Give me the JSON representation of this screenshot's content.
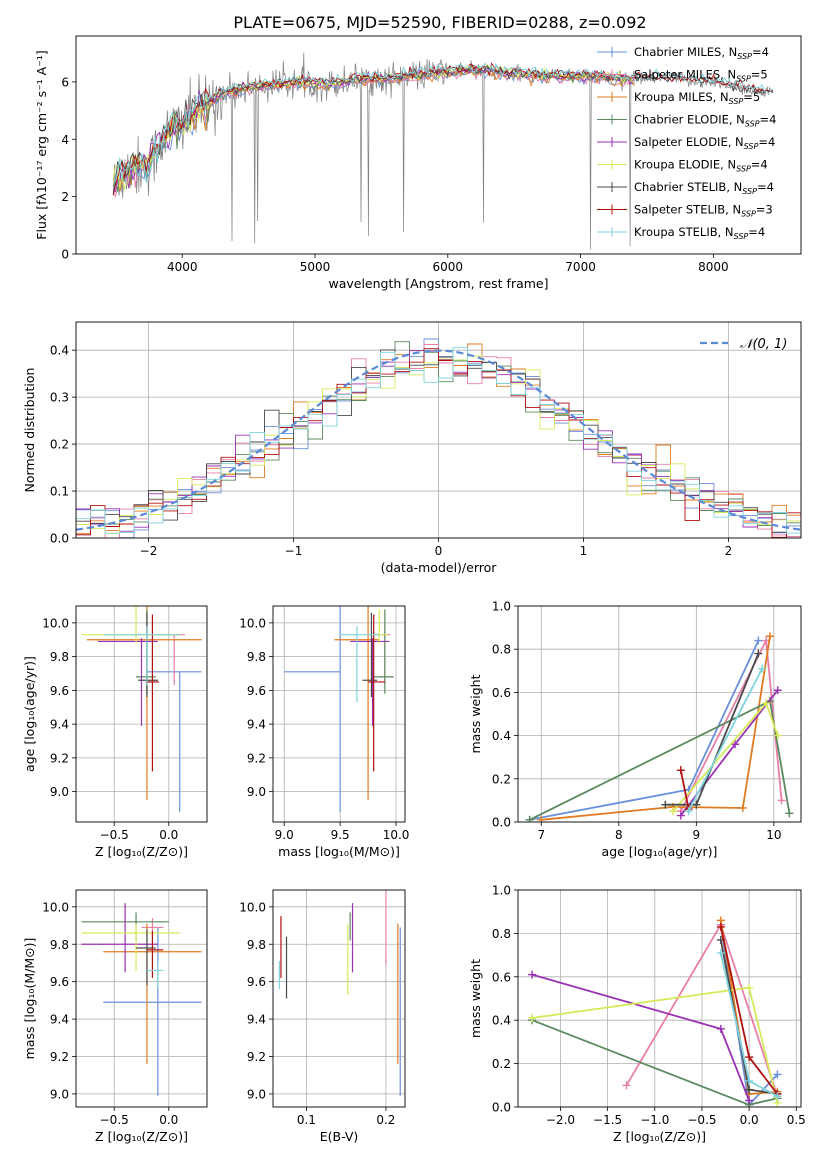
{
  "figure": {
    "title": "PLATE=0675, MJD=52590, FIBERID=0288, z=0.092"
  },
  "colors": {
    "Chabrier MILES": "#6a8fdb",
    "Salpeter MILES": "#e97fa8",
    "Kroupa MILES": "#e07b22",
    "Chabrier ELODIE": "#5b8a5e",
    "Salpeter ELODIE": "#9b32b4",
    "Kroupa ELODIE": "#d6ea5a",
    "Chabrier STELIB": "#4a4a4a",
    "Salpeter STELIB": "#b01010",
    "Kroupa STELIB": "#7fd3dc",
    "data": "#808080",
    "gauss": "#5b8ad6"
  },
  "chart_data": [
    {
      "id": "spectrum",
      "type": "line",
      "xlabel": "wavelength [Angstrom, rest frame]",
      "ylabel": "Flux [fλ10⁻¹⁷ erg cm⁻² s⁻¹ A⁻¹]",
      "xlim": [
        3200,
        8660
      ],
      "ylim": [
        0,
        7.6
      ],
      "xticks": [
        4000,
        5000,
        6000,
        7000,
        8000
      ],
      "yticks": [
        0,
        2,
        4,
        6
      ],
      "legend_position": "right",
      "legend": [
        {
          "label": "Chabrier MILES, N",
          "sub": "SSP",
          "suffix": "=4"
        },
        {
          "label": "Salpeter MILES, N",
          "sub": "SSP",
          "suffix": "=5"
        },
        {
          "label": "Kroupa MILES, N",
          "sub": "SSP",
          "suffix": "=5"
        },
        {
          "label": "Chabrier ELODIE, N",
          "sub": "SSP",
          "suffix": "=4"
        },
        {
          "label": "Salpeter ELODIE, N",
          "sub": "SSP",
          "suffix": "=4"
        },
        {
          "label": "Kroupa ELODIE, N",
          "sub": "SSP",
          "suffix": "=4"
        },
        {
          "label": "Chabrier STELIB, N",
          "sub": "SSP",
          "suffix": "=4"
        },
        {
          "label": "Salpeter STELIB, N",
          "sub": "SSP",
          "suffix": "=3"
        },
        {
          "label": "Kroupa STELIB, N",
          "sub": "SSP",
          "suffix": "=4"
        }
      ],
      "continuum": {
        "x": [
          3480,
          3550,
          3650,
          3750,
          3850,
          3950,
          4050,
          4150,
          4300,
          4500,
          4700,
          4900,
          5100,
          5300,
          5500,
          5700,
          5900,
          6100,
          6300,
          6500,
          6700,
          6900,
          7100,
          7300,
          7500,
          7700,
          7900,
          8100,
          8300,
          8450
        ],
        "y": [
          2.3,
          2.8,
          3.0,
          3.1,
          4.0,
          4.5,
          4.7,
          5.1,
          5.6,
          5.8,
          5.9,
          6.0,
          5.9,
          6.1,
          6.1,
          6.2,
          6.3,
          6.4,
          6.4,
          6.3,
          6.2,
          6.2,
          6.2,
          6.1,
          6.1,
          6.1,
          6.0,
          5.9,
          5.7,
          5.6
        ]
      }
    },
    {
      "id": "residuals",
      "type": "histogram",
      "xlabel": "(data-model)/error",
      "ylabel": "Normed distribution",
      "xlim": [
        -2.5,
        2.5
      ],
      "ylim": [
        0,
        0.46
      ],
      "xticks": [
        -2,
        -1,
        0,
        1,
        2
      ],
      "yticks": [
        0.0,
        0.1,
        0.2,
        0.3,
        0.4
      ],
      "grid": true,
      "legend_label": "𝒩(0, 1)",
      "legend_position": "top-right",
      "bins": 50
    },
    {
      "id": "age_vs_Z",
      "type": "errorbar",
      "xlabel": "Z [log₁₀(Z/Z⊙)]",
      "ylabel": "age  [log₁₀(age/yr)]",
      "xlim": [
        -0.85,
        0.35
      ],
      "ylim": [
        8.82,
        10.1
      ],
      "xticks": [
        -0.5,
        0.0
      ],
      "yticks": [
        9.0,
        9.2,
        9.4,
        9.6,
        9.8,
        10.0
      ],
      "grid": true,
      "points": [
        {
          "model": "Chabrier MILES",
          "x": 0.1,
          "xerr": [
            0.3,
            0.2
          ],
          "y": 9.71,
          "yerr": [
            0.83,
            0.0
          ]
        },
        {
          "model": "Salpeter MILES",
          "x": 0.05,
          "xerr": [
            0.2,
            0.1
          ],
          "y": 9.93,
          "yerr": [
            0.3,
            0.0
          ]
        },
        {
          "model": "Kroupa MILES",
          "x": -0.2,
          "xerr": [
            0.55,
            0.5
          ],
          "y": 9.9,
          "yerr": [
            0.95,
            0.2
          ]
        },
        {
          "model": "Chabrier ELODIE",
          "x": -0.2,
          "xerr": [
            0.1,
            0.08
          ],
          "y": 9.68,
          "yerr": [
            0.1,
            0.4
          ]
        },
        {
          "model": "Salpeter ELODIE",
          "x": -0.25,
          "xerr": [
            0.4,
            0.15
          ],
          "y": 9.89,
          "yerr": [
            0.5,
            0.02
          ]
        },
        {
          "model": "Kroupa ELODIE",
          "x": -0.3,
          "xerr": [
            0.5,
            0.38
          ],
          "y": 9.93,
          "yerr": [
            0.05,
            0.2
          ]
        },
        {
          "model": "Chabrier STELIB",
          "x": -0.2,
          "xerr": [
            0.08,
            0.1
          ],
          "y": 9.66,
          "yerr": [
            0.1,
            0.4
          ]
        },
        {
          "model": "Salpeter STELIB",
          "x": -0.15,
          "xerr": [
            0.06,
            0.06
          ],
          "y": 9.65,
          "yerr": [
            0.53,
            0.4
          ]
        },
        {
          "model": "Kroupa STELIB",
          "x": -0.2,
          "xerr": [
            0.4,
            0.3
          ],
          "y": 9.93,
          "yerr": [
            0.3,
            0.05
          ]
        }
      ]
    },
    {
      "id": "age_vs_mass",
      "type": "errorbar",
      "xlabel": "mass [log₁₀(M/M⊙)]",
      "ylabel": "",
      "xlim": [
        8.9,
        10.08
      ],
      "ylim": [
        8.82,
        10.1
      ],
      "xticks": [
        9.0,
        9.5,
        10.0
      ],
      "yticks": [
        9.0,
        9.2,
        9.4,
        9.6,
        9.8,
        10.0
      ],
      "grid": true,
      "points": [
        {
          "model": "Chabrier MILES",
          "x": 9.5,
          "xerr": [
            0.5,
            0.0
          ],
          "y": 9.71,
          "yerr": [
            0.83,
            0.45
          ]
        },
        {
          "model": "Salpeter MILES",
          "x": 9.9,
          "xerr": [
            0.1,
            0.05
          ],
          "y": 9.93,
          "yerr": [
            0.3,
            0.05
          ]
        },
        {
          "model": "Kroupa MILES",
          "x": 9.75,
          "xerr": [
            0.3,
            0.1
          ],
          "y": 9.9,
          "yerr": [
            0.95,
            0.2
          ]
        },
        {
          "model": "Chabrier ELODIE",
          "x": 9.9,
          "xerr": [
            0.1,
            0.08
          ],
          "y": 9.68,
          "yerr": [
            0.1,
            0.4
          ]
        },
        {
          "model": "Salpeter ELODIE",
          "x": 9.79,
          "xerr": [
            0.2,
            0.15
          ],
          "y": 9.89,
          "yerr": [
            0.5,
            0.02
          ]
        },
        {
          "model": "Kroupa ELODIE",
          "x": 9.85,
          "xerr": [
            0.1,
            0.08
          ],
          "y": 9.93,
          "yerr": [
            0.05,
            0.15
          ]
        },
        {
          "model": "Chabrier STELIB",
          "x": 9.78,
          "xerr": [
            0.08,
            0.05
          ],
          "y": 9.66,
          "yerr": [
            0.1,
            0.4
          ]
        },
        {
          "model": "Salpeter STELIB",
          "x": 9.8,
          "xerr": [
            0.05,
            0.1
          ],
          "y": 9.65,
          "yerr": [
            0.53,
            0.4
          ]
        },
        {
          "model": "Kroupa STELIB",
          "x": 9.65,
          "xerr": [
            0.15,
            0.2
          ],
          "y": 9.93,
          "yerr": [
            0.4,
            0.05
          ]
        }
      ]
    },
    {
      "id": "weight_vs_age",
      "type": "line",
      "xlabel": "age  [log₁₀(age/yr)]",
      "ylabel": "mass weight",
      "xlim": [
        6.7,
        10.35
      ],
      "ylim": [
        0,
        1.0
      ],
      "xticks": [
        7,
        8,
        9,
        10
      ],
      "yticks": [
        0.0,
        0.2,
        0.4,
        0.6,
        0.8,
        1.0
      ],
      "grid": true,
      "series": [
        {
          "model": "Chabrier MILES",
          "x": [
            6.85,
            8.9,
            9.8
          ],
          "y": [
            0.01,
            0.15,
            0.84
          ]
        },
        {
          "model": "Salpeter MILES",
          "x": [
            8.8,
            9.9,
            10.1
          ],
          "y": [
            0.05,
            0.84,
            0.1
          ]
        },
        {
          "model": "Kroupa MILES",
          "x": [
            7.0,
            8.7,
            9.6,
            9.95
          ],
          "y": [
            0.01,
            0.07,
            0.065,
            0.86
          ]
        },
        {
          "model": "Chabrier ELODIE",
          "x": [
            6.85,
            9.95,
            10.2
          ],
          "y": [
            0.01,
            0.56,
            0.04
          ]
        },
        {
          "model": "Salpeter ELODIE",
          "x": [
            8.8,
            9.5,
            10.05
          ],
          "y": [
            0.03,
            0.36,
            0.61
          ]
        },
        {
          "model": "Kroupa ELODIE",
          "x": [
            8.7,
            9.9,
            10.05
          ],
          "y": [
            0.05,
            0.55,
            0.4
          ]
        },
        {
          "model": "Chabrier STELIB",
          "x": [
            8.6,
            9.0,
            9.8
          ],
          "y": [
            0.08,
            0.08,
            0.78
          ]
        },
        {
          "model": "Salpeter STELIB",
          "x": [
            8.8,
            8.9
          ],
          "y": [
            0.24,
            0.06
          ]
        },
        {
          "model": "Kroupa STELIB",
          "x": [
            8.9,
            9.85
          ],
          "y": [
            0.05,
            0.71
          ]
        }
      ]
    },
    {
      "id": "mass_vs_Z",
      "type": "errorbar",
      "xlabel": "Z [log₁₀(Z/Z⊙)]",
      "ylabel": "mass [log₁₀(M/M⊙)]",
      "xlim": [
        -0.85,
        0.35
      ],
      "ylim": [
        8.93,
        10.09
      ],
      "xticks": [
        -0.5,
        0.0
      ],
      "yticks": [
        9.0,
        9.2,
        9.4,
        9.6,
        9.8,
        10.0
      ],
      "grid": true,
      "points": [
        {
          "model": "Chabrier MILES",
          "x": -0.1,
          "xerr": [
            0.5,
            0.4
          ],
          "y": 9.49,
          "yerr": [
            0.5,
            0.4
          ]
        },
        {
          "model": "Salpeter MILES",
          "x": -0.15,
          "xerr": [
            0.1,
            0.1
          ],
          "y": 9.89,
          "yerr": [
            0.05,
            0.05
          ]
        },
        {
          "model": "Kroupa MILES",
          "x": -0.2,
          "xerr": [
            0.4,
            0.5
          ],
          "y": 9.76,
          "yerr": [
            0.6,
            0.15
          ]
        },
        {
          "model": "Chabrier ELODIE",
          "x": -0.3,
          "xerr": [
            0.5,
            0.3
          ],
          "y": 9.92,
          "yerr": [
            0.1,
            0.05
          ]
        },
        {
          "model": "Salpeter ELODIE",
          "x": -0.4,
          "xerr": [
            0.4,
            0.3
          ],
          "y": 9.8,
          "yerr": [
            0.15,
            0.22
          ]
        },
        {
          "model": "Kroupa ELODIE",
          "x": -0.3,
          "xerr": [
            0.5,
            0.4
          ],
          "y": 9.86,
          "yerr": [
            0.2,
            0.05
          ]
        },
        {
          "model": "Chabrier STELIB",
          "x": -0.2,
          "xerr": [
            0.1,
            0.08
          ],
          "y": 9.78,
          "yerr": [
            0.2,
            0.1
          ]
        },
        {
          "model": "Salpeter STELIB",
          "x": -0.15,
          "xerr": [
            0.05,
            0.1
          ],
          "y": 9.77,
          "yerr": [
            0.15,
            0.1
          ]
        },
        {
          "model": "Kroupa STELIB",
          "x": -0.1,
          "xerr": [
            0.1,
            0.05
          ],
          "y": 9.66,
          "yerr": [
            0.1,
            0.05
          ]
        }
      ]
    },
    {
      "id": "mass_vs_ebv",
      "type": "errorbar",
      "xlabel": "E(B-V)",
      "ylabel": "",
      "xlim": [
        0.058,
        0.224
      ],
      "ylim": [
        8.93,
        10.09
      ],
      "xticks": [
        0.1,
        0.2
      ],
      "yticks": [
        9.0,
        9.2,
        9.4,
        9.6,
        9.8,
        10.0
      ],
      "grid": true,
      "points": [
        {
          "model": "Chabrier MILES",
          "x": 0.218,
          "xerr": [
            0,
            0
          ],
          "y": 9.49,
          "yerr": [
            0.5,
            0.4
          ]
        },
        {
          "model": "Salpeter MILES",
          "x": 0.2,
          "xerr": [
            0,
            0
          ],
          "y": 9.89,
          "yerr": [
            0.2,
            0.2
          ]
        },
        {
          "model": "Kroupa MILES",
          "x": 0.215,
          "xerr": [
            0,
            0
          ],
          "y": 9.76,
          "yerr": [
            0.6,
            0.15
          ]
        },
        {
          "model": "Chabrier ELODIE",
          "x": 0.155,
          "xerr": [
            0,
            0
          ],
          "y": 9.92,
          "yerr": [
            0.1,
            0.05
          ]
        },
        {
          "model": "Salpeter ELODIE",
          "x": 0.158,
          "xerr": [
            0,
            0
          ],
          "y": 9.8,
          "yerr": [
            0.15,
            0.22
          ]
        },
        {
          "model": "Kroupa ELODIE",
          "x": 0.152,
          "xerr": [
            0,
            0
          ],
          "y": 9.86,
          "yerr": [
            0.33,
            0.05
          ]
        },
        {
          "model": "Chabrier STELIB",
          "x": 0.075,
          "xerr": [
            0,
            0
          ],
          "y": 9.78,
          "yerr": [
            0.27,
            0.06
          ]
        },
        {
          "model": "Salpeter STELIB",
          "x": 0.068,
          "xerr": [
            0,
            0
          ],
          "y": 9.77,
          "yerr": [
            0.15,
            0.18
          ]
        },
        {
          "model": "Kroupa STELIB",
          "x": 0.066,
          "xerr": [
            0,
            0
          ],
          "y": 9.66,
          "yerr": [
            0.1,
            0.05
          ]
        }
      ]
    },
    {
      "id": "weight_vs_Z",
      "type": "line",
      "xlabel": "Z [log₁₀(Z/Z⊙)]",
      "ylabel": "mass weight",
      "xlim": [
        -2.45,
        0.55
      ],
      "ylim": [
        0,
        1.0
      ],
      "xticks": [
        -2.0,
        -1.5,
        -1.0,
        -0.5,
        0.0,
        0.5
      ],
      "yticks": [
        0.0,
        0.2,
        0.4,
        0.6,
        0.8,
        1.0
      ],
      "grid": true,
      "series": [
        {
          "model": "Chabrier MILES",
          "x": [
            -0.3,
            0.0,
            0.3
          ],
          "y": [
            0.84,
            0.01,
            0.15
          ]
        },
        {
          "model": "Salpeter MILES",
          "x": [
            -1.3,
            -0.3,
            0.3
          ],
          "y": [
            0.1,
            0.84,
            0.05
          ]
        },
        {
          "model": "Kroupa MILES",
          "x": [
            -0.3,
            0.0,
            0.3
          ],
          "y": [
            0.86,
            0.06,
            0.07
          ]
        },
        {
          "model": "Chabrier ELODIE",
          "x": [
            -2.3,
            0.0,
            0.3
          ],
          "y": [
            0.4,
            0.01,
            0.04
          ]
        },
        {
          "model": "Salpeter ELODIE",
          "x": [
            -2.3,
            -0.3,
            0.0
          ],
          "y": [
            0.61,
            0.36,
            0.03
          ]
        },
        {
          "model": "Kroupa ELODIE",
          "x": [
            -2.3,
            0.0,
            0.3
          ],
          "y": [
            0.41,
            0.55,
            0.02
          ]
        },
        {
          "model": "Chabrier STELIB",
          "x": [
            -0.3,
            0.0,
            0.3
          ],
          "y": [
            0.77,
            0.08,
            0.06
          ]
        },
        {
          "model": "Salpeter STELIB",
          "x": [
            -0.3,
            0.0,
            0.3
          ],
          "y": [
            0.83,
            0.23,
            0.06
          ]
        },
        {
          "model": "Kroupa STELIB",
          "x": [
            -0.3,
            0.0,
            0.3
          ],
          "y": [
            0.71,
            0.12,
            0.05
          ]
        }
      ]
    }
  ]
}
